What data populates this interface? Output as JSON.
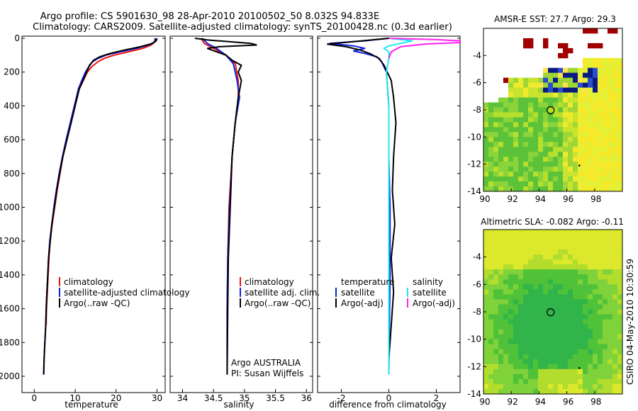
{
  "header": {
    "line1": "Argo profile: CS 5901630_98 28-Apr-2010 20100502_50 8.032S 94.833E",
    "line2": "Climatology: CARS2009. Satellite-adjusted climatology: synTS_20100428.nc (0.3d earlier)"
  },
  "side_label": "CSIRO 04-May-2010 10:30:59",
  "colors": {
    "red": "#ee1111",
    "blue": "#1122dd",
    "black": "#000000",
    "cyan": "#22e8ee",
    "magenta": "#ff22ee"
  },
  "chart_data": [
    {
      "type": "line",
      "name": "temperature",
      "xlabel": "temperature",
      "xlim": [
        -3,
        32
      ],
      "ylim": [
        0,
        2080
      ],
      "y_reversed": true,
      "xticks": [
        0,
        10,
        20,
        30
      ],
      "yticks": [
        0,
        200,
        400,
        600,
        800,
        1000,
        1200,
        1400,
        1600,
        1800,
        2000
      ],
      "legend": [
        "climatology",
        "satellite-adjusted climatology",
        "Argo(..raw -QC)"
      ],
      "series": [
        {
          "name": "climatology",
          "color": "red",
          "points": [
            [
              29.5,
              0
            ],
            [
              29.4,
              20
            ],
            [
              28.6,
              40
            ],
            [
              26.5,
              60
            ],
            [
              23,
              80
            ],
            [
              19.5,
              100
            ],
            [
              17,
              120
            ],
            [
              15.5,
              140
            ],
            [
              14,
              170
            ],
            [
              13,
              200
            ],
            [
              12,
              250
            ],
            [
              11,
              300
            ],
            [
              10,
              400
            ],
            [
              9,
              500
            ],
            [
              8,
              600
            ],
            [
              7,
              700
            ],
            [
              6.3,
              800
            ],
            [
              5.6,
              900
            ],
            [
              5,
              1000
            ],
            [
              4.4,
              1100
            ],
            [
              3.9,
              1200
            ],
            [
              3.6,
              1300
            ],
            [
              3.4,
              1400
            ],
            [
              3.2,
              1500
            ],
            [
              3.0,
              1600
            ],
            [
              2.9,
              1700
            ]
          ]
        },
        {
          "name": "satellite-adjusted climatology",
          "color": "blue",
          "points": [
            [
              29.7,
              0
            ],
            [
              29.5,
              20
            ],
            [
              28,
              40
            ],
            [
              25,
              60
            ],
            [
              21,
              80
            ],
            [
              17.5,
              100
            ],
            [
              15.5,
              120
            ],
            [
              14.2,
              140
            ],
            [
              13.3,
              170
            ],
            [
              12.5,
              200
            ],
            [
              11.6,
              250
            ],
            [
              10.8,
              300
            ],
            [
              9.8,
              400
            ],
            [
              8.8,
              500
            ],
            [
              7.8,
              600
            ],
            [
              6.9,
              700
            ],
            [
              6.1,
              800
            ],
            [
              5.4,
              900
            ],
            [
              4.8,
              1000
            ],
            [
              4.3,
              1100
            ],
            [
              3.8,
              1200
            ],
            [
              3.5,
              1300
            ],
            [
              3.3,
              1400
            ],
            [
              3.1,
              1500
            ],
            [
              2.95,
              1600
            ],
            [
              2.8,
              1700
            ],
            [
              2.6,
              1800
            ],
            [
              2.4,
              1900
            ],
            [
              2.3,
              1990
            ]
          ]
        },
        {
          "name": "Argo(..raw -QC)",
          "color": "black",
          "points": [
            [
              30,
              0
            ],
            [
              29.8,
              15
            ],
            [
              29,
              30
            ],
            [
              26,
              50
            ],
            [
              22,
              70
            ],
            [
              18.5,
              90
            ],
            [
              16,
              110
            ],
            [
              14.5,
              130
            ],
            [
              13.5,
              160
            ],
            [
              12.8,
              200
            ],
            [
              11.9,
              250
            ],
            [
              11,
              300
            ],
            [
              10,
              400
            ],
            [
              9,
              500
            ],
            [
              8,
              600
            ],
            [
              7,
              700
            ],
            [
              6.2,
              800
            ],
            [
              5.5,
              900
            ],
            [
              4.9,
              1000
            ],
            [
              4.3,
              1100
            ],
            [
              3.9,
              1200
            ],
            [
              3.5,
              1300
            ],
            [
              3.3,
              1400
            ],
            [
              3.1,
              1500
            ],
            [
              2.9,
              1600
            ],
            [
              2.8,
              1700
            ],
            [
              2.6,
              1800
            ],
            [
              2.4,
              1900
            ],
            [
              2.3,
              1990
            ]
          ]
        }
      ]
    },
    {
      "type": "line",
      "name": "salinity",
      "xlabel": "salinity",
      "xlim": [
        33.8,
        36.1
      ],
      "ylim": [
        0,
        2080
      ],
      "y_reversed": true,
      "xticks": [
        34,
        34.5,
        35,
        35.5,
        36
      ],
      "yticks": [
        0,
        200,
        400,
        600,
        800,
        1000,
        1200,
        1400,
        1600,
        1800,
        2000
      ],
      "legend": [
        "climatology",
        "satellite adj. clim.",
        "Argo(..raw -QC)"
      ],
      "annotation": [
        "Argo AUSTRALIA",
        "PI: Susan Wijffels"
      ],
      "series": [
        {
          "name": "climatology",
          "color": "red",
          "points": [
            [
              34.3,
              0
            ],
            [
              34.35,
              30
            ],
            [
              34.5,
              60
            ],
            [
              34.7,
              100
            ],
            [
              34.85,
              150
            ],
            [
              34.9,
              250
            ],
            [
              34.9,
              350
            ],
            [
              34.85,
              500
            ],
            [
              34.8,
              700
            ],
            [
              34.75,
              1000
            ],
            [
              34.73,
              1300
            ],
            [
              34.72,
              1600
            ],
            [
              34.72,
              1900
            ]
          ]
        },
        {
          "name": "satellite adj. clim.",
          "color": "blue",
          "points": [
            [
              34.32,
              0
            ],
            [
              34.4,
              30
            ],
            [
              34.55,
              60
            ],
            [
              34.7,
              100
            ],
            [
              34.82,
              150
            ],
            [
              34.88,
              250
            ],
            [
              34.92,
              350
            ],
            [
              34.85,
              500
            ],
            [
              34.8,
              700
            ],
            [
              34.76,
              1000
            ],
            [
              34.73,
              1300
            ],
            [
              34.72,
              1600
            ],
            [
              34.72,
              1990
            ]
          ]
        },
        {
          "name": "Argo(..raw -QC)",
          "color": "black",
          "points": [
            [
              34.2,
              0
            ],
            [
              34.4,
              10
            ],
            [
              34.75,
              20
            ],
            [
              35.1,
              30
            ],
            [
              35.2,
              40
            ],
            [
              34.6,
              50
            ],
            [
              34.4,
              60
            ],
            [
              34.55,
              80
            ],
            [
              34.7,
              100
            ],
            [
              34.8,
              130
            ],
            [
              34.95,
              160
            ],
            [
              34.9,
              200
            ],
            [
              34.95,
              250
            ],
            [
              34.9,
              350
            ],
            [
              34.85,
              500
            ],
            [
              34.8,
              700
            ],
            [
              34.77,
              1000
            ],
            [
              34.74,
              1300
            ],
            [
              34.73,
              1600
            ],
            [
              34.72,
              1990
            ]
          ]
        }
      ]
    },
    {
      "type": "line",
      "name": "difference",
      "xlabel": "difference from climatology",
      "xlim": [
        -3,
        3
      ],
      "ylim": [
        0,
        2080
      ],
      "y_reversed": true,
      "xticks": [
        -2,
        0,
        2
      ],
      "yticks": [
        0,
        200,
        400,
        600,
        800,
        1000,
        1200,
        1400,
        1600,
        1800,
        2000
      ],
      "legend_left": [
        "temperature",
        "satellite",
        "Argo(-adj)"
      ],
      "legend_right": [
        "salinity",
        "satellite",
        "Argo(-adj)"
      ],
      "series": [
        {
          "name": "temperature satellite",
          "color": "blue",
          "points": [
            [
              0,
              0
            ],
            [
              -1,
              15
            ],
            [
              -2.5,
              30
            ],
            [
              -1.5,
              45
            ],
            [
              -1,
              60
            ],
            [
              -1.5,
              75
            ],
            [
              -1,
              90
            ],
            [
              -0.5,
              110
            ],
            [
              -0.3,
              140
            ],
            [
              -0.1,
              200
            ],
            [
              0,
              400
            ],
            [
              0,
              700
            ],
            [
              0.05,
              1000
            ],
            [
              0.05,
              1400
            ],
            [
              0,
              1990
            ]
          ]
        },
        {
          "name": "temperature Argo(-adj)",
          "color": "black",
          "points": [
            [
              0,
              0
            ],
            [
              -1.5,
              20
            ],
            [
              -2.6,
              35
            ],
            [
              -1.8,
              50
            ],
            [
              -1.2,
              70
            ],
            [
              -0.8,
              90
            ],
            [
              -0.4,
              120
            ],
            [
              -0.2,
              160
            ],
            [
              0.1,
              250
            ],
            [
              0.2,
              350
            ],
            [
              0.3,
              500
            ],
            [
              0.2,
              700
            ],
            [
              0.15,
              900
            ],
            [
              0.25,
              1100
            ],
            [
              0.1,
              1300
            ],
            [
              0.2,
              1500
            ],
            [
              0.1,
              1700
            ],
            [
              0,
              1900
            ]
          ]
        },
        {
          "name": "salinity satellite",
          "color": "cyan",
          "points": [
            [
              0,
              0
            ],
            [
              1,
              15
            ],
            [
              0.5,
              30
            ],
            [
              0,
              45
            ],
            [
              -0.2,
              60
            ],
            [
              0,
              80
            ],
            [
              0,
              120
            ],
            [
              -0.1,
              200
            ],
            [
              0,
              400
            ],
            [
              0,
              800
            ],
            [
              0,
              1200
            ],
            [
              0,
              1600
            ],
            [
              0,
              1990
            ]
          ]
        },
        {
          "name": "salinity Argo(-adj)",
          "color": "magenta",
          "points": [
            [
              0,
              0
            ],
            [
              2,
              8
            ],
            [
              3,
              15
            ],
            [
              3,
              25
            ],
            [
              1.5,
              35
            ],
            [
              0.5,
              50
            ],
            [
              0.1,
              80
            ],
            [
              0,
              120
            ]
          ]
        }
      ]
    },
    {
      "type": "heatmap",
      "name": "sst-map",
      "title": "AMSR-E SST: 27.7  Argo: 29.3",
      "xlim": [
        90,
        100
      ],
      "ylim": [
        -14,
        -2
      ],
      "xticks": [
        90,
        92,
        94,
        96,
        98
      ],
      "yticks": [
        -4,
        -6,
        -8,
        -10,
        -12,
        -14
      ],
      "argo_position": [
        94.833,
        -8.032
      ],
      "secondary_marker": [
        96.9,
        -12.1
      ]
    },
    {
      "type": "heatmap",
      "name": "sla-map",
      "title": "Altimetric SLA: -0.082  Argo: -0.11",
      "xlim": [
        90,
        100
      ],
      "ylim": [
        -14,
        -2
      ],
      "xticks": [
        90,
        92,
        94,
        96,
        98
      ],
      "yticks": [
        -4,
        -6,
        -8,
        -10,
        -12,
        -14
      ],
      "argo_position": [
        94.833,
        -8.032
      ],
      "secondary_marker": [
        96.9,
        -12.1
      ]
    }
  ]
}
